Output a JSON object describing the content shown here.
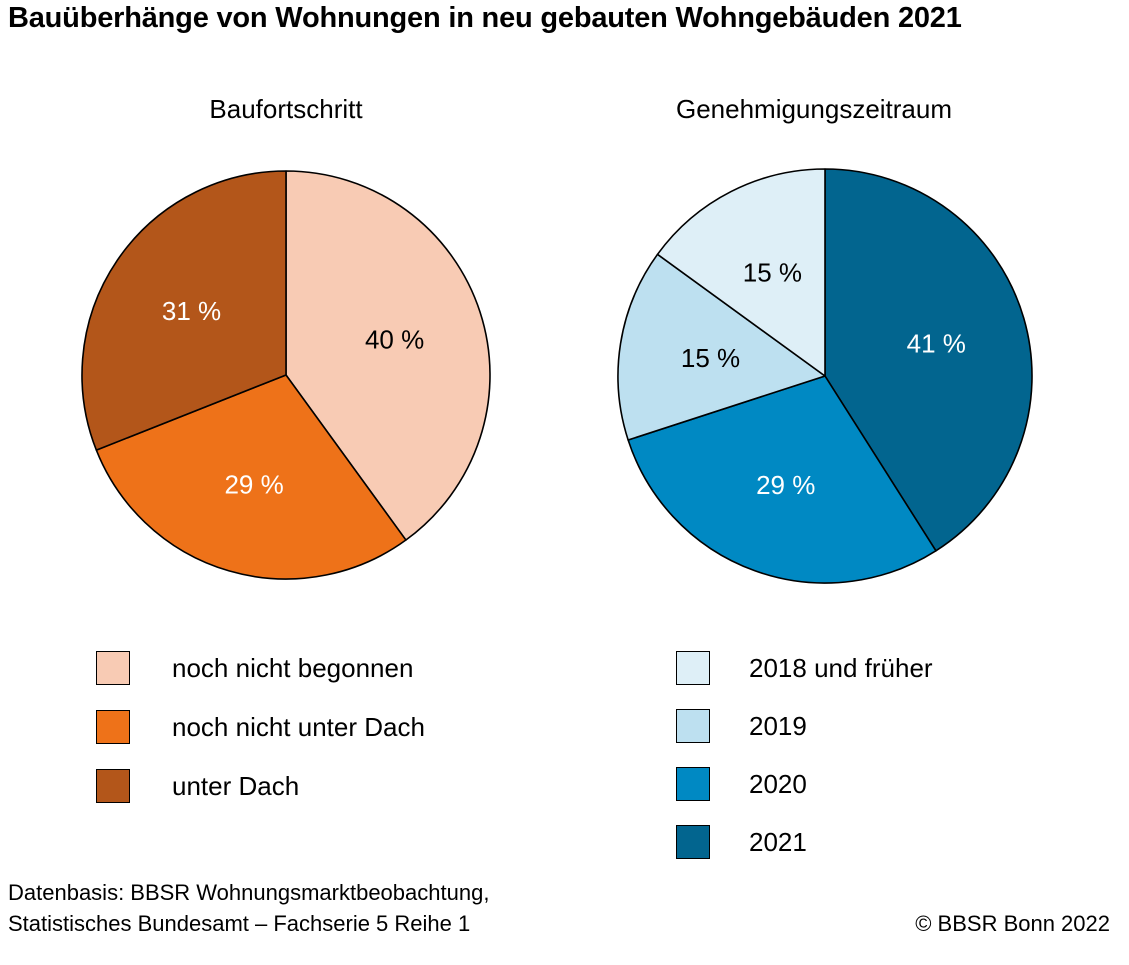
{
  "chart_data": [
    {
      "type": "pie",
      "title": "Baufortschritt",
      "categories": [
        "noch nicht begonnen",
        "noch nicht unter Dach",
        "unter Dach"
      ],
      "values": [
        40,
        29,
        31
      ],
      "labels": [
        "40 %",
        "29 %",
        "31 %"
      ],
      "colors": [
        "#f8cbb4",
        "#ee7219",
        "#b3561a"
      ],
      "label_colors": [
        "#000000",
        "#ffffff",
        "#ffffff"
      ]
    },
    {
      "type": "pie",
      "title": "Genehmigungszeitraum",
      "categories": [
        "2021",
        "2020",
        "2019",
        "2018 und früher"
      ],
      "values": [
        41,
        29,
        15,
        15
      ],
      "labels": [
        "41 %",
        "29 %",
        "15 %",
        "15 %"
      ],
      "colors": [
        "#02658f",
        "#0089c3",
        "#bde0f0",
        "#deeff7"
      ],
      "label_colors": [
        "#ffffff",
        "#ffffff",
        "#000000",
        "#000000"
      ]
    }
  ],
  "title": "Bauüberhänge von Wohnungen in neu gebauten Wohngebäuden 2021",
  "legend_left": [
    {
      "label": "noch nicht begonnen",
      "color": "#f8cbb4"
    },
    {
      "label": "noch nicht unter Dach",
      "color": "#ee7219"
    },
    {
      "label": "unter Dach",
      "color": "#b3561a"
    }
  ],
  "legend_right": [
    {
      "label": "2018 und früher",
      "color": "#deeff7"
    },
    {
      "label": "2019",
      "color": "#bde0f0"
    },
    {
      "label": "2020",
      "color": "#0089c3"
    },
    {
      "label": "2021",
      "color": "#02658f"
    }
  ],
  "footer": {
    "source_line1": "Datenbasis: BBSR Wohnungsmarktbeobachtung,",
    "source_line2": "Statistisches Bundesamt – Fachserie 5 Reihe 1",
    "copyright": "© BBSR Bonn 2022"
  }
}
